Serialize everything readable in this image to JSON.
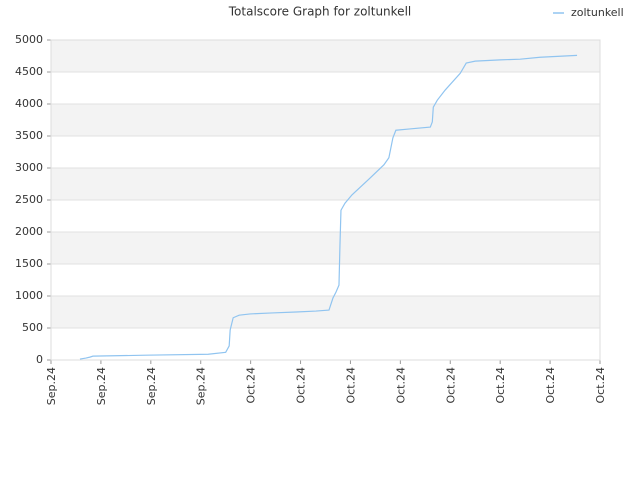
{
  "chart_data": {
    "type": "line",
    "title": "Totalscore Graph for zoltunkell",
    "series": [
      {
        "name": "zoltunkell",
        "color": "#90c4f0",
        "x": [
          0.58,
          0.7,
          0.78,
          0.84,
          1.9,
          3.15,
          3.5,
          3.57,
          3.59,
          3.65,
          3.77,
          3.99,
          4.43,
          4.91,
          5.31,
          5.57,
          5.65,
          5.71,
          5.77,
          5.79,
          5.81,
          5.89,
          6.03,
          6.39,
          6.67,
          6.77,
          6.85,
          6.91,
          7.19,
          7.6,
          7.64,
          7.66,
          7.74,
          7.9,
          8.2,
          8.32,
          8.5,
          9.0,
          9.4,
          9.8,
          10.54
        ],
        "values": [
          15,
          30,
          45,
          60,
          75,
          90,
          120,
          220,
          470,
          660,
          700,
          720,
          735,
          750,
          765,
          780,
          970,
          1060,
          1170,
          1800,
          2340,
          2450,
          2580,
          2840,
          3050,
          3160,
          3470,
          3590,
          3610,
          3640,
          3720,
          3950,
          4060,
          4220,
          4480,
          4640,
          4670,
          4690,
          4700,
          4730,
          4760
        ]
      }
    ],
    "xlim": [
      0,
      11
    ],
    "xticks": [
      {
        "value": 0,
        "label": "Sep.24"
      },
      {
        "value": 1,
        "label": "Sep.24"
      },
      {
        "value": 2,
        "label": "Sep.24"
      },
      {
        "value": 3,
        "label": "Sep.24"
      },
      {
        "value": 4,
        "label": "Oct.24"
      },
      {
        "value": 5,
        "label": "Oct.24"
      },
      {
        "value": 6,
        "label": "Oct.24"
      },
      {
        "value": 7,
        "label": "Oct.24"
      },
      {
        "value": 8,
        "label": "Oct.24"
      },
      {
        "value": 9,
        "label": "Oct.24"
      },
      {
        "value": 10,
        "label": "Oct.24"
      },
      {
        "value": 11,
        "label": "Oct.24"
      }
    ],
    "ylim": [
      0,
      5000
    ],
    "yticks": [
      0,
      500,
      1000,
      1500,
      2000,
      2500,
      3000,
      3500,
      4000,
      4500,
      5000
    ],
    "grid": true,
    "legend": "top-right"
  }
}
